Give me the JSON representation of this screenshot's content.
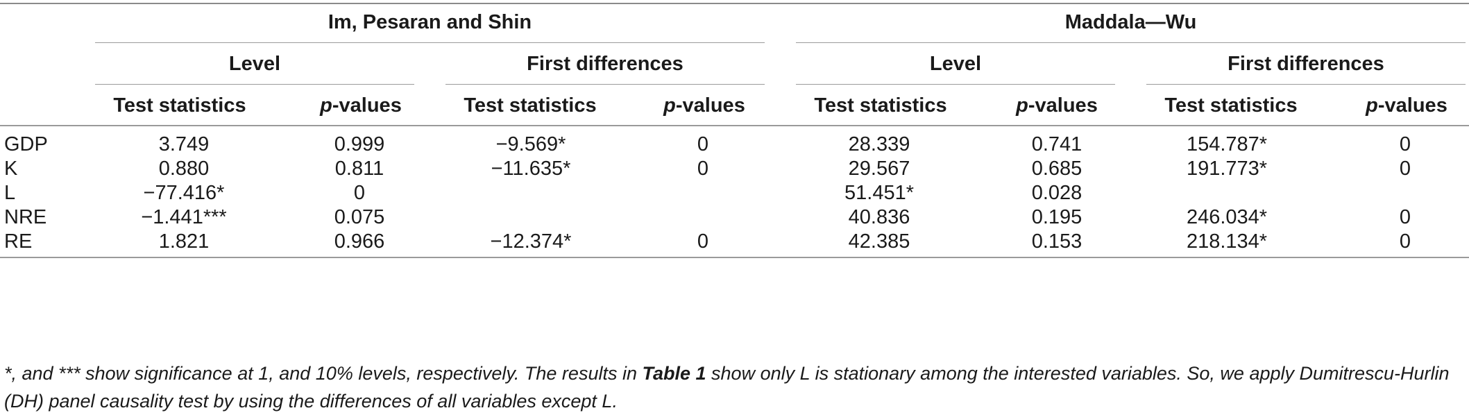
{
  "table": {
    "group_headers": [
      "Im, Pesaran and Shin",
      "Maddala—Wu"
    ],
    "sub_headers": [
      "Level",
      "First differences",
      "Level",
      "First differences"
    ],
    "col_headers": [
      {
        "prefix": "",
        "label": "Test statistics"
      },
      {
        "prefix": "p",
        "label": "-values"
      },
      {
        "prefix": "",
        "label": "Test statistics"
      },
      {
        "prefix": "p",
        "label": "-values"
      },
      {
        "prefix": "",
        "label": "Test statistics"
      },
      {
        "prefix": "p",
        "label": "-values"
      },
      {
        "prefix": "",
        "label": "Test statistics"
      },
      {
        "prefix": "p",
        "label": "-values"
      }
    ],
    "rows": [
      {
        "label": "GDP",
        "cells": [
          "3.749",
          "0.999",
          "−9.569*",
          "0",
          "28.339",
          "0.741",
          "154.787*",
          "0"
        ]
      },
      {
        "label": "K",
        "cells": [
          "0.880",
          "0.811",
          "−11.635*",
          "0",
          "29.567",
          "0.685",
          "191.773*",
          "0"
        ]
      },
      {
        "label": "L",
        "cells": [
          "−77.416*",
          "0",
          "",
          "",
          "51.451*",
          "0.028",
          "",
          ""
        ]
      },
      {
        "label": "NRE",
        "cells": [
          "−1.441***",
          "0.075",
          "",
          "",
          "40.836",
          "0.195",
          "246.034*",
          "0"
        ]
      },
      {
        "label": "RE",
        "cells": [
          "1.821",
          "0.966",
          "−12.374*",
          "0",
          "42.385",
          "0.153",
          "218.134*",
          "0"
        ]
      }
    ]
  },
  "footnote": {
    "part1": "*, and *** show significance at 1, and 10% levels, respectively. The results in ",
    "bold": "Table 1",
    "part2": " show only L is stationary among the interested variables. So, we apply Dumitrescu-Hurlin (DH) panel causality test by using the differences of all variables except L."
  }
}
